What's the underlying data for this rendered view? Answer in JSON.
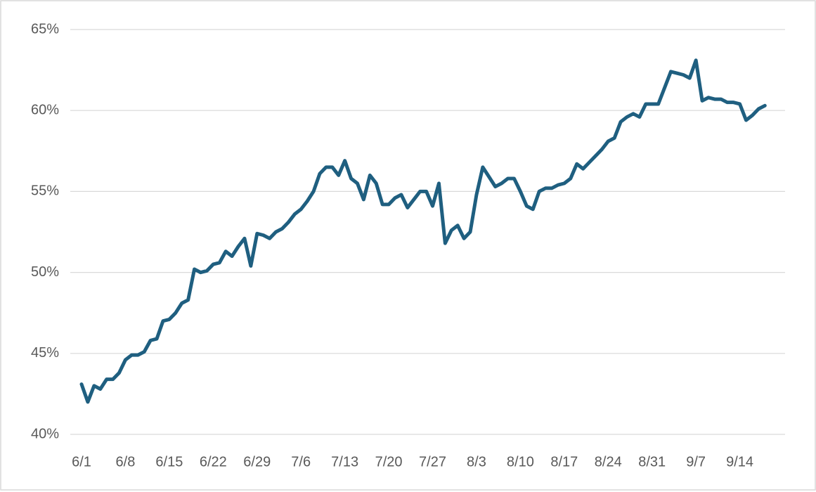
{
  "chart_data": {
    "type": "line",
    "categories": [
      "6/1",
      null,
      null,
      null,
      null,
      null,
      null,
      "6/8",
      null,
      null,
      null,
      null,
      null,
      null,
      "6/15",
      null,
      null,
      null,
      null,
      null,
      null,
      "6/22",
      null,
      null,
      null,
      null,
      null,
      null,
      "6/29",
      null,
      null,
      null,
      null,
      null,
      null,
      "7/6",
      null,
      null,
      null,
      null,
      null,
      null,
      "7/13",
      null,
      null,
      null,
      null,
      null,
      null,
      "7/20",
      null,
      null,
      null,
      null,
      null,
      null,
      "7/27",
      null,
      null,
      null,
      null,
      null,
      null,
      "8/3",
      null,
      null,
      null,
      null,
      null,
      null,
      "8/10",
      null,
      null,
      null,
      null,
      null,
      null,
      "8/17",
      null,
      null,
      null,
      null,
      null,
      null,
      "8/24",
      null,
      null,
      null,
      null,
      null,
      null,
      "8/31",
      null,
      null,
      null,
      null,
      null,
      null,
      "9/7",
      null,
      null,
      null,
      null,
      null,
      null,
      "9/14",
      null,
      null,
      null,
      null
    ],
    "values": [
      43.1,
      42.0,
      43.0,
      42.8,
      43.4,
      43.4,
      43.8,
      44.6,
      44.9,
      44.9,
      45.1,
      45.8,
      45.9,
      47.0,
      47.1,
      47.5,
      48.1,
      48.3,
      50.2,
      50.0,
      50.1,
      50.5,
      50.6,
      51.3,
      51.0,
      51.6,
      52.1,
      50.4,
      52.4,
      52.3,
      52.1,
      52.5,
      52.7,
      53.1,
      53.6,
      53.9,
      54.4,
      55.0,
      56.1,
      56.5,
      56.5,
      56.0,
      56.9,
      55.8,
      55.5,
      54.5,
      56.0,
      55.5,
      54.2,
      54.2,
      54.6,
      54.8,
      54.0,
      54.5,
      55.0,
      55.0,
      54.1,
      55.5,
      51.8,
      52.6,
      52.9,
      52.1,
      52.5,
      54.8,
      56.5,
      55.9,
      55.3,
      55.5,
      55.8,
      55.8,
      55.0,
      54.1,
      53.9,
      55.0,
      55.2,
      55.2,
      55.4,
      55.5,
      55.8,
      56.7,
      56.4,
      56.8,
      57.2,
      57.6,
      58.1,
      58.3,
      59.3,
      59.6,
      59.8,
      59.6,
      60.4,
      60.4,
      60.4,
      61.4,
      62.4,
      62.3,
      62.2,
      62.0,
      63.1,
      60.6,
      60.8,
      60.7,
      60.7,
      60.5,
      60.5,
      60.4,
      59.4,
      59.7,
      60.1,
      60.3
    ],
    "color": "#1f5f80",
    "ylim": [
      40,
      65
    ],
    "yticks": [
      {
        "value": 40,
        "label": "40%"
      },
      {
        "value": 45,
        "label": "45%"
      },
      {
        "value": 50,
        "label": "50%"
      },
      {
        "value": 55,
        "label": "55%"
      },
      {
        "value": 60,
        "label": "60%"
      },
      {
        "value": 65,
        "label": "65%"
      }
    ],
    "grid": true
  }
}
